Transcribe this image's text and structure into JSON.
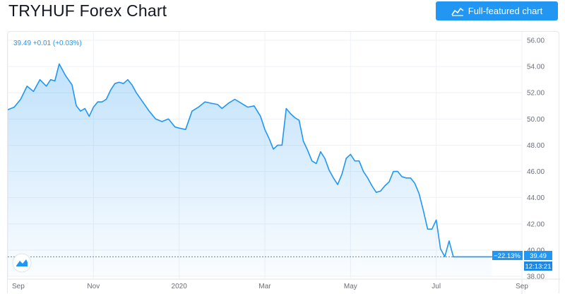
{
  "header": {
    "title": "TRYHUF Forex Chart",
    "button_label": "Full-featured chart",
    "button_icon": "chart-line-icon"
  },
  "colors": {
    "line": "#2196f3",
    "button": "#2196f3",
    "tag_bg": "#2196f3",
    "time_tag_bg": "#1e88e5",
    "grid": "#eef1f6",
    "axis_text": "#6a6d78"
  },
  "chart_data": {
    "type": "area",
    "symbol": "TRYHUF",
    "legend_text": "39.49 +0.01 (+0.03%)",
    "last_price": "39.49",
    "change_tag": "−22.13%",
    "time_tag": "12:13:21",
    "x_axis_labels": [
      "Sep",
      "Nov",
      "2020",
      "Mar",
      "May",
      "Jul",
      "Sep"
    ],
    "y_axis_labels": [
      "56.00",
      "54.00",
      "52.00",
      "50.00",
      "48.00",
      "46.00",
      "44.00",
      "42.00",
      "40.00",
      "38.00"
    ],
    "ylim": [
      38,
      56
    ],
    "xlim": [
      0,
      12
    ],
    "grid": true,
    "y_position": "right",
    "series": [
      {
        "x": [
          0.0,
          0.15,
          0.3,
          0.45,
          0.6,
          0.75,
          0.9,
          1.0,
          1.1,
          1.2,
          1.35,
          1.5,
          1.6,
          1.7,
          1.8,
          1.9,
          2.0,
          2.1,
          2.2,
          2.3,
          2.4,
          2.5,
          2.6,
          2.7,
          2.8,
          2.9,
          3.0,
          3.15,
          3.3,
          3.45,
          3.6,
          3.75,
          3.9,
          4.0,
          4.15,
          4.3,
          4.45,
          4.6,
          4.75,
          4.9,
          5.0,
          5.15,
          5.3,
          5.45,
          5.6,
          5.75,
          5.9,
          6.0,
          6.1,
          6.2,
          6.3,
          6.4,
          6.5,
          6.6,
          6.7,
          6.8,
          6.9,
          7.0,
          7.1,
          7.2,
          7.3,
          7.4,
          7.5,
          7.6,
          7.7,
          7.8,
          7.9,
          8.0,
          8.1,
          8.2,
          8.3,
          8.4,
          8.5,
          8.6,
          8.7,
          8.8,
          8.9,
          9.0,
          9.1,
          9.2,
          9.3,
          9.4,
          9.5,
          9.6,
          9.7,
          9.8,
          9.9,
          10.0,
          10.1,
          10.2,
          10.3,
          10.4,
          10.5,
          10.6,
          10.7,
          10.8,
          10.9,
          11.0,
          11.1,
          11.2,
          11.3
        ],
        "y": [
          50.7,
          50.9,
          51.5,
          52.5,
          52.1,
          53.0,
          52.5,
          53.0,
          52.9,
          54.2,
          53.3,
          52.6,
          51.0,
          50.6,
          50.8,
          50.2,
          50.9,
          51.3,
          51.3,
          51.5,
          52.2,
          52.7,
          52.8,
          52.7,
          53.0,
          52.6,
          52.0,
          51.3,
          50.6,
          50.0,
          49.8,
          50.0,
          49.4,
          49.3,
          49.2,
          50.6,
          50.9,
          51.3,
          51.2,
          51.1,
          50.8,
          51.2,
          51.5,
          51.2,
          50.9,
          51.0,
          50.2,
          49.2,
          48.5,
          47.7,
          48.0,
          48.0,
          50.8,
          50.4,
          50.1,
          49.9,
          48.3,
          47.6,
          46.8,
          46.6,
          47.5,
          47.0,
          46.1,
          45.5,
          45.0,
          45.8,
          47.0,
          47.3,
          46.8,
          46.8,
          46.0,
          45.5,
          44.9,
          44.4,
          44.5,
          44.9,
          45.2,
          46.0,
          46.0,
          45.6,
          45.5,
          45.5,
          45.1,
          44.3,
          43.0,
          41.6,
          41.6,
          42.3,
          40.1,
          39.5,
          40.7,
          39.49,
          39.49,
          39.49,
          39.49,
          39.49,
          39.49,
          39.49,
          39.49,
          39.49,
          39.49
        ]
      }
    ]
  }
}
